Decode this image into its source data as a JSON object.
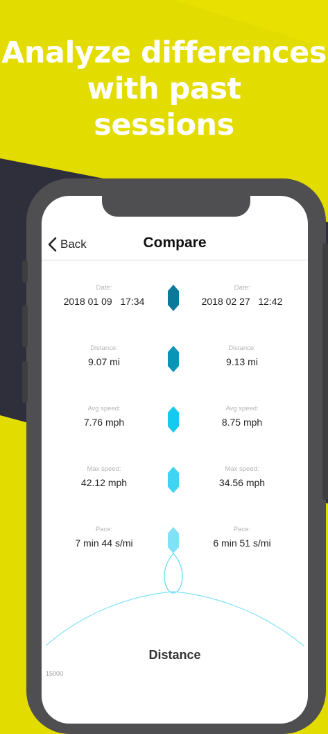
{
  "promo": {
    "headline_lines": [
      "Analyze differences",
      "with past",
      "sessions"
    ],
    "colors": {
      "background": "#e3dc00",
      "dark_band": "#2f2f3c",
      "text": "#ffffff"
    }
  },
  "nav": {
    "back_label": "Back",
    "back_icon": "chevron-left-icon",
    "title": "Compare"
  },
  "compare": {
    "rows": [
      {
        "label": "Date:",
        "left": "2018 01 09   17:34",
        "right": "2018 02 27   12:42",
        "marker_color": "#0b7a9a"
      },
      {
        "label": "Distance:",
        "left": "9.07 mi",
        "right": "9.13 mi",
        "marker_color": "#0895b8"
      },
      {
        "label": "Avg speed:",
        "left": "7.76 mph",
        "right": "8.75 mph",
        "marker_color": "#14cbef"
      },
      {
        "label": "Max speed:",
        "left": "42.12 mph",
        "right": "34.56 mph",
        "marker_color": "#3fd4f2"
      },
      {
        "label": "Pace:",
        "left": "7 min 44 s/mi",
        "right": "6 min 51 s/mi",
        "marker_color": "#7fe2f6"
      }
    ],
    "line_color": "#1ec8ea"
  },
  "chart": {
    "title": "Distance",
    "tick_label": "15000"
  }
}
